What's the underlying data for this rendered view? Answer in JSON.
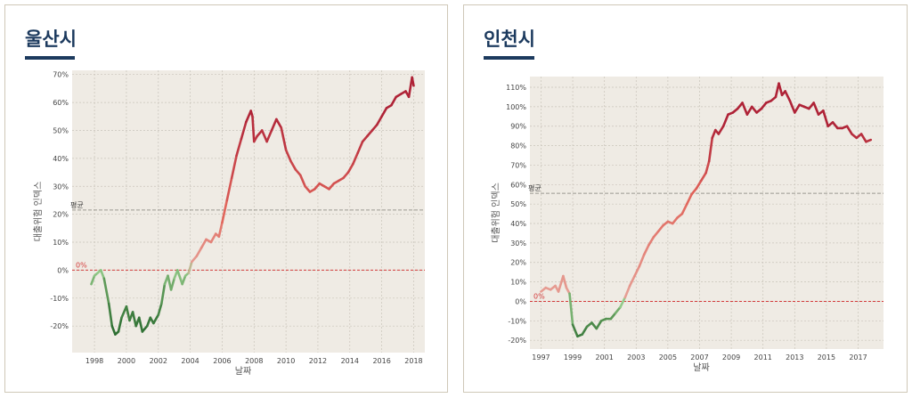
{
  "colors": {
    "title": "#1c3a5e",
    "plot_bg": "#efebe4",
    "grid": "#c9c4ba",
    "zero": "#d43c3c",
    "avg": "#9a9890"
  },
  "chart_data": [
    {
      "type": "line",
      "title": "울산시",
      "xlabel": "날짜",
      "ylabel": "대출위험 인덱스",
      "xlim": [
        1996.6,
        2018.7
      ],
      "ylim": [
        -0.295,
        0.715
      ],
      "xticks": [
        1998,
        2000,
        2002,
        2004,
        2006,
        2008,
        2010,
        2012,
        2014,
        2016,
        2018
      ],
      "yticks": [
        -0.2,
        -0.1,
        0,
        0.1,
        0.2,
        0.3,
        0.4,
        0.5,
        0.6,
        0.7
      ],
      "ytick_labels": [
        "-20%",
        "-10%",
        "0%",
        "10%",
        "20%",
        "30%",
        "40%",
        "50%",
        "60%",
        "70%"
      ],
      "x_tick_labels": [
        "1998",
        "2000",
        "2002",
        "2004",
        "2006",
        "2008",
        "2010",
        "2012",
        "2014",
        "2016",
        "2018"
      ],
      "zero_label": "0%",
      "avg_label": "평균",
      "average": 0.215,
      "series": [
        {
          "name": "울산시",
          "x": [
            1997.8,
            1998.0,
            1998.2,
            1998.4,
            1998.6,
            1998.9,
            1999.1,
            1999.3,
            1999.5,
            1999.7,
            2000.0,
            2000.2,
            2000.4,
            2000.6,
            2000.8,
            2001.0,
            2001.3,
            2001.5,
            2001.7,
            2002.0,
            2002.2,
            2002.4,
            2002.6,
            2002.8,
            2003.0,
            2003.2,
            2003.5,
            2003.7,
            2003.9,
            2004.1,
            2004.4,
            2004.7,
            2005.0,
            2005.3,
            2005.6,
            2005.8,
            2006.0,
            2006.3,
            2006.6,
            2006.9,
            2007.2,
            2007.5,
            2007.8,
            2007.9,
            2008.0,
            2008.2,
            2008.5,
            2008.8,
            2009.1,
            2009.4,
            2009.7,
            2010.0,
            2010.3,
            2010.6,
            2010.9,
            2011.2,
            2011.5,
            2011.8,
            2012.1,
            2012.4,
            2012.7,
            2013.0,
            2013.3,
            2013.6,
            2013.9,
            2014.2,
            2014.5,
            2014.8,
            2015.1,
            2015.4,
            2015.7,
            2016.0,
            2016.3,
            2016.6,
            2016.9,
            2017.2,
            2017.5,
            2017.7,
            2017.9,
            2018.0
          ],
          "y": [
            -0.05,
            -0.02,
            -0.01,
            0.0,
            -0.03,
            -0.12,
            -0.2,
            -0.23,
            -0.22,
            -0.17,
            -0.13,
            -0.18,
            -0.15,
            -0.2,
            -0.17,
            -0.22,
            -0.2,
            -0.17,
            -0.19,
            -0.16,
            -0.12,
            -0.05,
            -0.02,
            -0.07,
            -0.03,
            0.0,
            -0.05,
            -0.02,
            -0.01,
            0.03,
            0.05,
            0.08,
            0.11,
            0.1,
            0.13,
            0.12,
            0.17,
            0.25,
            0.33,
            0.41,
            0.47,
            0.53,
            0.57,
            0.55,
            0.46,
            0.48,
            0.5,
            0.46,
            0.5,
            0.54,
            0.51,
            0.43,
            0.39,
            0.36,
            0.34,
            0.3,
            0.28,
            0.29,
            0.31,
            0.3,
            0.29,
            0.31,
            0.32,
            0.33,
            0.35,
            0.38,
            0.42,
            0.46,
            0.48,
            0.5,
            0.52,
            0.55,
            0.58,
            0.59,
            0.62,
            0.63,
            0.64,
            0.62,
            0.69,
            0.66
          ]
        }
      ]
    },
    {
      "type": "line",
      "title": "인천시",
      "xlabel": "날짜",
      "ylabel": "대출위험 인덱스",
      "xlim": [
        1996.3,
        2018.6
      ],
      "ylim": [
        -0.245,
        1.155
      ],
      "xticks": [
        1997,
        1999,
        2001,
        2003,
        2005,
        2007,
        2009,
        2011,
        2013,
        2015,
        2017
      ],
      "yticks": [
        -0.2,
        -0.1,
        0,
        0.1,
        0.2,
        0.3,
        0.4,
        0.5,
        0.6,
        0.7,
        0.8,
        0.9,
        1.0,
        1.1
      ],
      "ytick_labels": [
        "-20%",
        "-10%",
        "0%",
        "10%",
        "20%",
        "30%",
        "40%",
        "50%",
        "60%",
        "70%",
        "80%",
        "90%",
        "100%",
        "110%"
      ],
      "x_tick_labels": [
        "1997",
        "1999",
        "2001",
        "2003",
        "2005",
        "2007",
        "2009",
        "2011",
        "2013",
        "2015",
        "2017"
      ],
      "zero_label": "0%",
      "avg_label": "평균",
      "average": 0.555,
      "series": [
        {
          "name": "인천시",
          "x": [
            1997.0,
            1997.3,
            1997.6,
            1997.9,
            1998.1,
            1998.4,
            1998.6,
            1998.8,
            1999.0,
            1999.3,
            1999.6,
            1999.9,
            2000.2,
            2000.5,
            2000.8,
            2001.1,
            2001.4,
            2001.7,
            2002.0,
            2002.3,
            2002.6,
            2002.9,
            2003.2,
            2003.5,
            2003.8,
            2004.1,
            2004.4,
            2004.7,
            2005.0,
            2005.3,
            2005.6,
            2005.9,
            2006.2,
            2006.5,
            2006.8,
            2007.1,
            2007.4,
            2007.6,
            2007.8,
            2008.0,
            2008.2,
            2008.5,
            2008.8,
            2009.1,
            2009.4,
            2009.7,
            2010.0,
            2010.3,
            2010.6,
            2010.9,
            2011.2,
            2011.5,
            2011.8,
            2012.0,
            2012.2,
            2012.4,
            2012.7,
            2013.0,
            2013.3,
            2013.6,
            2013.9,
            2014.2,
            2014.5,
            2014.8,
            2015.1,
            2015.4,
            2015.7,
            2016.0,
            2016.3,
            2016.6,
            2016.9,
            2017.2,
            2017.5,
            2017.8
          ],
          "y": [
            0.05,
            0.07,
            0.06,
            0.08,
            0.05,
            0.13,
            0.07,
            0.04,
            -0.12,
            -0.18,
            -0.17,
            -0.13,
            -0.11,
            -0.14,
            -0.1,
            -0.09,
            -0.09,
            -0.06,
            -0.03,
            0.02,
            0.08,
            0.13,
            0.18,
            0.24,
            0.29,
            0.33,
            0.36,
            0.39,
            0.41,
            0.4,
            0.43,
            0.45,
            0.5,
            0.55,
            0.58,
            0.62,
            0.66,
            0.72,
            0.84,
            0.88,
            0.86,
            0.9,
            0.96,
            0.97,
            0.99,
            1.02,
            0.96,
            1.0,
            0.97,
            0.99,
            1.02,
            1.03,
            1.05,
            1.12,
            1.06,
            1.08,
            1.03,
            0.97,
            1.01,
            1.0,
            0.99,
            1.02,
            0.96,
            0.98,
            0.9,
            0.92,
            0.89,
            0.89,
            0.9,
            0.86,
            0.84,
            0.86,
            0.82,
            0.83
          ]
        }
      ]
    }
  ]
}
